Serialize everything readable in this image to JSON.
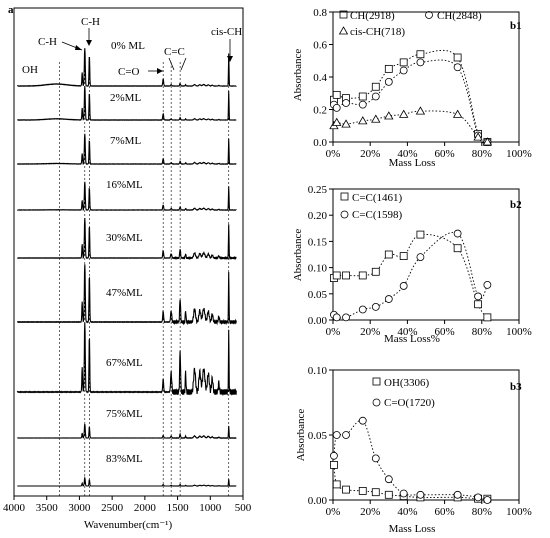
{
  "figure": {
    "panel_a": {
      "tag": "a",
      "xlabel": "Wavenumber(cm⁻¹)",
      "xticks": [
        4000,
        3500,
        3000,
        2500,
        2000,
        1500,
        1000,
        500
      ],
      "xlim": [
        4000,
        500
      ],
      "band_labels": [
        "OH",
        "C-H",
        "C-H",
        "C=O",
        "C=C",
        "cis-CH"
      ],
      "reference_wavenumbers": [
        3306,
        2918,
        2848,
        1720,
        1598,
        1461,
        718
      ],
      "spectrum_labels": [
        "0% ML",
        "2%ML",
        "7%ML",
        "16%ML",
        "30%ML",
        "47%ML",
        "67%ML",
        "75%ML",
        "83%ML"
      ]
    },
    "panel_b1": {
      "tag": "b1",
      "ylabel": "Absorbance",
      "xlabel": "Mass Loss",
      "yticks": [
        "0.0",
        "0.2",
        "0.4",
        "0.6",
        "0.8"
      ],
      "xticks": [
        "0%",
        "20%",
        "40%",
        "60%",
        "80%",
        "100%"
      ],
      "legend": [
        "CH(2918)",
        "CH(2848)",
        "cis-CH(718)"
      ]
    },
    "panel_b2": {
      "tag": "b2",
      "ylabel": "Absorbance",
      "xlabel": "Mass Loss%",
      "yticks": [
        "0.00",
        "0.05",
        "0.10",
        "0.15",
        "0.20",
        "0.25"
      ],
      "xticks": [
        "0%",
        "20%",
        "40%",
        "60%",
        "80%",
        "100%"
      ],
      "legend": [
        "C=C(1461)",
        "C=C(1598)"
      ]
    },
    "panel_b3": {
      "tag": "b3",
      "ylabel": "Absorbance",
      "xlabel": "Mass Loss",
      "yticks": [
        "0.00",
        "0.05",
        "0.10"
      ],
      "xticks": [
        "0%",
        "20%",
        "40%",
        "60%",
        "80%",
        "100%"
      ],
      "legend": [
        "OH(3306)",
        "C=O(1720)"
      ]
    }
  },
  "chart_data": [
    {
      "panel": "a",
      "type": "line",
      "xlabel": "Wavenumber(cm⁻¹)",
      "xlim": [
        4000,
        500
      ],
      "series": [
        {
          "name": "0% ML"
        },
        {
          "name": "2%ML"
        },
        {
          "name": "7%ML"
        },
        {
          "name": "16%ML"
        },
        {
          "name": "30%ML"
        },
        {
          "name": "47%ML"
        },
        {
          "name": "67%ML"
        },
        {
          "name": "75%ML"
        },
        {
          "name": "83%ML"
        }
      ]
    },
    {
      "panel": "b1",
      "type": "scatter",
      "xlabel": "Mass Loss",
      "ylabel": "Absorbance",
      "xlim": [
        0,
        100
      ],
      "ylim": [
        0,
        0.8
      ],
      "legend": "top-left",
      "series": [
        {
          "name": "CH(2918)",
          "marker": "square",
          "x": [
            0.5,
            2,
            7,
            16,
            23,
            30,
            38,
            47,
            67,
            78,
            83
          ],
          "y": [
            0.26,
            0.29,
            0.27,
            0.28,
            0.34,
            0.45,
            0.49,
            0.54,
            0.52,
            0.05,
            0.0
          ]
        },
        {
          "name": "CH(2848)",
          "marker": "circle",
          "x": [
            0.5,
            2,
            7,
            16,
            23,
            30,
            38,
            47,
            67,
            78,
            83
          ],
          "y": [
            0.23,
            0.21,
            0.24,
            0.23,
            0.28,
            0.37,
            0.44,
            0.49,
            0.46,
            0.04,
            0.0
          ]
        },
        {
          "name": "cis-CH(718)",
          "marker": "triangle",
          "x": [
            0.5,
            2,
            7,
            16,
            23,
            30,
            38,
            47,
            67,
            78,
            83
          ],
          "y": [
            0.1,
            0.12,
            0.11,
            0.13,
            0.14,
            0.16,
            0.17,
            0.19,
            0.17,
            0.03,
            0.0
          ]
        }
      ]
    },
    {
      "panel": "b2",
      "type": "scatter",
      "xlabel": "Mass Loss%",
      "ylabel": "Absorbance",
      "xlim": [
        0,
        100
      ],
      "ylim": [
        0,
        0.25
      ],
      "legend": "top-left",
      "series": [
        {
          "name": "C=C(1461)",
          "marker": "square",
          "x": [
            0.5,
            2,
            7,
            16,
            23,
            30,
            38,
            47,
            67,
            78,
            83
          ],
          "y": [
            0.08,
            0.085,
            0.085,
            0.085,
            0.092,
            0.125,
            0.122,
            0.163,
            0.137,
            0.03,
            0.005
          ]
        },
        {
          "name": "C=C(1598)",
          "marker": "circle",
          "x": [
            0.5,
            2,
            7,
            16,
            23,
            30,
            38,
            47,
            67,
            78,
            83
          ],
          "y": [
            0.01,
            0.005,
            0.005,
            0.02,
            0.025,
            0.04,
            0.065,
            0.12,
            0.165,
            0.045,
            0.067
          ]
        }
      ]
    },
    {
      "panel": "b3",
      "type": "scatter",
      "xlabel": "Mass Loss",
      "ylabel": "Absorbance",
      "xlim": [
        0,
        100
      ],
      "ylim": [
        0,
        0.1
      ],
      "legend": "top-left",
      "series": [
        {
          "name": "OH(3306)",
          "marker": "square",
          "x": [
            0.5,
            2,
            7,
            16,
            23,
            30,
            38,
            47,
            67,
            78,
            83
          ],
          "y": [
            0.027,
            0.012,
            0.008,
            0.007,
            0.006,
            0.004,
            0.003,
            0.002,
            0.002,
            0.001,
            0.001
          ]
        },
        {
          "name": "C=O(1720)",
          "marker": "circle",
          "x": [
            0.5,
            2,
            7,
            16,
            23,
            30,
            38,
            47,
            67,
            78,
            83
          ],
          "y": [
            0.034,
            0.05,
            0.05,
            0.061,
            0.032,
            0.016,
            0.005,
            0.004,
            0.004,
            0.002,
            0.0
          ]
        }
      ]
    }
  ]
}
